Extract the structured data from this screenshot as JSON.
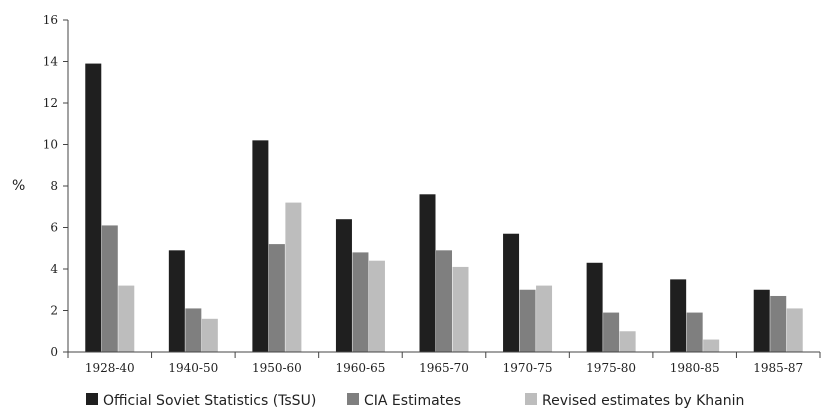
{
  "chart_data": {
    "type": "bar",
    "title": "",
    "xlabel": "",
    "ylabel": "%",
    "ylim": [
      0,
      16
    ],
    "yticks": [
      0,
      2,
      4,
      6,
      8,
      10,
      12,
      14,
      16
    ],
    "grid": false,
    "legend_position": "bottom",
    "categories": [
      "1928-40",
      "1940-50",
      "1950-60",
      "1960-65",
      "1965-70",
      "1970-75",
      "1975-80",
      "1980-85",
      "1985-87"
    ],
    "series": [
      {
        "name": "Official Soviet Statistics (TsSU)",
        "color": "#1f1f1f",
        "values": [
          13.9,
          4.9,
          10.2,
          6.4,
          7.6,
          5.7,
          4.3,
          3.5,
          3.0
        ]
      },
      {
        "name": "CIA Estimates",
        "color": "#7f7f7f",
        "values": [
          6.1,
          2.1,
          5.2,
          4.8,
          4.9,
          3.0,
          1.9,
          1.9,
          2.7
        ]
      },
      {
        "name": "Revised estimates by Khanin",
        "color": "#bdbdbd",
        "values": [
          3.2,
          1.6,
          7.2,
          4.4,
          4.1,
          3.2,
          1.0,
          0.6,
          2.1
        ]
      }
    ]
  }
}
